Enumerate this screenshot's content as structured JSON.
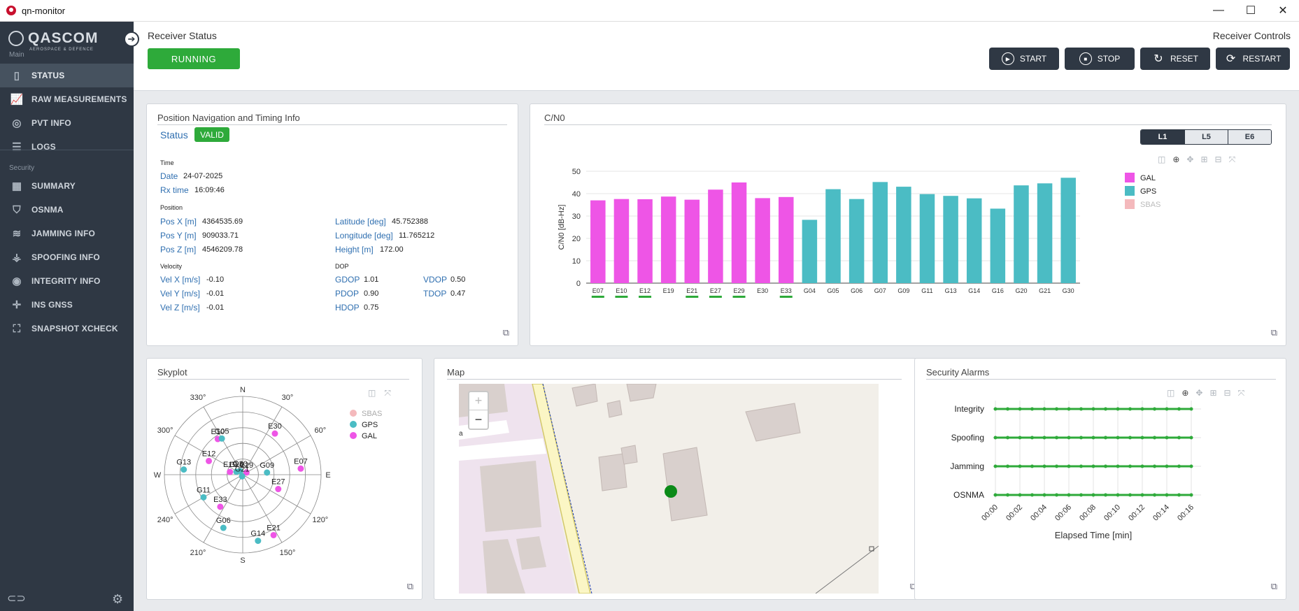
{
  "window": {
    "title": "qn-monitor",
    "minimize": "—",
    "maximize": "☐",
    "close": "✕"
  },
  "sidebar": {
    "logo_name": "QASCOM",
    "logo_sub": "AEROSPACE & DEFENCE",
    "section_main": "Main",
    "section_security": "Security",
    "main_items": [
      "STATUS",
      "RAW MEASUREMENTS",
      "PVT INFO",
      "LOGS"
    ],
    "security_items": [
      "SUMMARY",
      "OSNMA",
      "JAMMING INFO",
      "SPOOFING INFO",
      "INTEGRITY INFO",
      "INS GNSS",
      "SNAPSHOT XCHECK"
    ]
  },
  "header": {
    "receiver_status_label": "Receiver Status",
    "receiver_status": "RUNNING",
    "receiver_controls_label": "Receiver Controls",
    "buttons": {
      "start": "START",
      "stop": "STOP",
      "reset": "RESET",
      "restart": "RESTART"
    }
  },
  "pnt": {
    "title": "Position Navigation and Timing Info",
    "status_label": "Status",
    "status": "VALID",
    "time_head": "Time",
    "date_label": "Date",
    "date": "24-07-2025",
    "rx_label": "Rx time",
    "rx": "16:09:46",
    "position_head": "Position",
    "posx_label": "Pos X [m]",
    "posx": "4364535.69",
    "posy_label": "Pos Y [m]",
    "posy": "909033.71",
    "posz_label": "Pos Z [m]",
    "posz": "4546209.78",
    "lat_label": "Latitude [deg]",
    "lat": "45.752388",
    "lon_label": "Longitude [deg]",
    "lon": "11.765212",
    "h_label": "Height [m]",
    "h": "172.00",
    "velocity_head": "Velocity",
    "vx_label": "Vel X [m/s]",
    "vx": "-0.10",
    "vy_label": "Vel Y [m/s]",
    "vy": "-0.01",
    "vz_label": "Vel Z [m/s]",
    "vz": "-0.01",
    "dop_head": "DOP",
    "gdop_label": "GDOP",
    "gdop": "1.01",
    "pdop_label": "PDOP",
    "pdop": "0.90",
    "hdop_label": "HDOP",
    "hdop": "0.75",
    "vdop_label": "VDOP",
    "vdop": "0.50",
    "tdop_label": "TDOP",
    "tdop": "0.47"
  },
  "cn0": {
    "title": "C/N0",
    "tabs": [
      "L1",
      "L5",
      "E6"
    ],
    "active_tab": "L1"
  },
  "skyplot": {
    "title": "Skyplot",
    "directions": [
      "N",
      "E",
      "S",
      "W"
    ],
    "angle_labels": [
      "30°",
      "60°",
      "120°",
      "150°",
      "210°",
      "240°",
      "300°",
      "330°"
    ],
    "legend": [
      "SBAS",
      "GPS",
      "GAL"
    ]
  },
  "map": {
    "title": "Map",
    "zoom_in": "+",
    "zoom_out": "−",
    "edge_text": "a"
  },
  "alarms": {
    "title": "Security Alarms",
    "xlabel": "Elapsed Time [min]"
  },
  "colors": {
    "gal": "#ee55e6",
    "gps": "#4bbcc4",
    "sbas": "#f4b9bc",
    "ok": "#2eaa3a",
    "dark": "#2f3844"
  },
  "chart_data": [
    {
      "type": "bar",
      "title": "C/N0",
      "ylabel": "C/N0 [dB-Hz]",
      "ylim": [
        0,
        50
      ],
      "yticks": [
        0,
        10,
        20,
        30,
        40,
        50
      ],
      "categories": [
        "E07",
        "E10",
        "E12",
        "E19",
        "E21",
        "E27",
        "E29",
        "E30",
        "E33",
        "G04",
        "G05",
        "G06",
        "G07",
        "G09",
        "G11",
        "G13",
        "G14",
        "G16",
        "G20",
        "G21",
        "G30"
      ],
      "values": [
        37,
        37.6,
        37.5,
        38.7,
        37.3,
        41.8,
        45,
        38,
        38.5,
        28.3,
        42,
        37.6,
        45.2,
        43.1,
        39.8,
        39,
        37.9,
        33.3,
        43.7,
        44.6,
        47.1
      ],
      "constellation": [
        "GAL",
        "GAL",
        "GAL",
        "GAL",
        "GAL",
        "GAL",
        "GAL",
        "GAL",
        "GAL",
        "GPS",
        "GPS",
        "GPS",
        "GPS",
        "GPS",
        "GPS",
        "GPS",
        "GPS",
        "GPS",
        "GPS",
        "GPS",
        "GPS"
      ],
      "underlined": [
        "E07",
        "E10",
        "E12",
        "E21",
        "E27",
        "E29",
        "E33"
      ],
      "legend": [
        "GAL",
        "GPS",
        "SBAS"
      ],
      "legend_position": "top-right"
    },
    {
      "type": "scatter",
      "title": "Skyplot",
      "projection": "polar",
      "points": [
        {
          "name": "E10",
          "c": "GAL",
          "az": 325,
          "el": 40
        },
        {
          "name": "G05",
          "c": "GPS",
          "az": 330,
          "el": 42
        },
        {
          "name": "E30",
          "c": "GAL",
          "az": 38,
          "el": 30
        },
        {
          "name": "E12",
          "c": "GAL",
          "az": 292,
          "el": 48
        },
        {
          "name": "G13",
          "c": "GPS",
          "az": 275,
          "el": 22
        },
        {
          "name": "E19",
          "c": "GAL",
          "az": 282,
          "el": 75
        },
        {
          "name": "G20",
          "c": "GPS",
          "az": 295,
          "el": 82
        },
        {
          "name": "G30",
          "c": "GPS",
          "az": 325,
          "el": 85
        },
        {
          "name": "E29",
          "c": "GAL",
          "az": 60,
          "el": 85
        },
        {
          "name": "G21",
          "c": "GPS",
          "az": 200,
          "el": 88
        },
        {
          "name": "G09",
          "c": "GPS",
          "az": 85,
          "el": 62
        },
        {
          "name": "E07",
          "c": "GAL",
          "az": 84,
          "el": 23
        },
        {
          "name": "E27",
          "c": "GAL",
          "az": 112,
          "el": 46
        },
        {
          "name": "G11",
          "c": "GPS",
          "az": 240,
          "el": 38
        },
        {
          "name": "E33",
          "c": "GAL",
          "az": 215,
          "el": 45
        },
        {
          "name": "G06",
          "c": "GPS",
          "az": 200,
          "el": 25
        },
        {
          "name": "G14",
          "c": "GPS",
          "az": 167,
          "el": 12
        },
        {
          "name": "E21",
          "c": "GAL",
          "az": 153,
          "el": 12
        }
      ],
      "legend": [
        "SBAS",
        "GPS",
        "GAL"
      ]
    },
    {
      "type": "line",
      "title": "Security Alarms",
      "xlabel": "Elapsed Time [min]",
      "xticks": [
        "00:00",
        "00:02",
        "00:04",
        "00:06",
        "00:08",
        "00:10",
        "00:12",
        "00:14",
        "00:16"
      ],
      "categories": [
        "Integrity",
        "Spoofing",
        "Jamming",
        "OSNMA"
      ],
      "points_per_series": 17,
      "status": "ok"
    }
  ]
}
